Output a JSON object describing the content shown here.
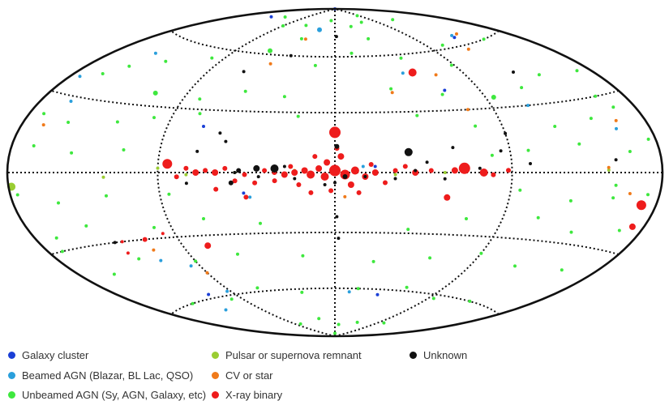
{
  "classes": {
    "galaxy_cluster": {
      "label": "Galaxy cluster",
      "color": "#1a3fd6"
    },
    "beamed_agn": {
      "label": "Beamed AGN (Blazar, BL Lac, QSO)",
      "color": "#2a9fdc"
    },
    "unbeamed_agn": {
      "label": "Unbeamed AGN (Sy, AGN, Galaxy, etc)",
      "color": "#3ee83e"
    },
    "pulsar_snr": {
      "label": "Pulsar or supernova remnant",
      "color": "#9acd32"
    },
    "cv_star": {
      "label": "CV or star",
      "color": "#f07a1a"
    },
    "xray_binary": {
      "label": "X-ray binary",
      "color": "#ee1c1c"
    },
    "unknown": {
      "label": "Unknown",
      "color": "#111111"
    }
  },
  "legend_order": [
    "galaxy_cluster",
    "beamed_agn",
    "unbeamed_agn",
    "pulsar_snr",
    "cv_star",
    "xray_binary",
    "unknown"
  ],
  "sources": [
    [
      "galaxy_cluster",
      0,
      90,
      2
    ],
    [
      "galaxy_cluster",
      148,
      78,
      2
    ],
    [
      "galaxy_cluster",
      -20,
      3,
      2
    ],
    [
      "galaxy_cluster",
      70,
      22,
      2
    ],
    [
      "galaxy_cluster",
      -68,
      40,
      2
    ],
    [
      "galaxy_cluster",
      -130,
      64,
      2
    ],
    [
      "galaxy_cluster",
      46,
      -10,
      2
    ],
    [
      "galaxy_cluster",
      112,
      -58,
      2
    ],
    [
      "galaxy_cluster",
      -40,
      -63,
      2
    ],
    [
      "beamed_agn",
      -132,
      65,
      2
    ],
    [
      "beamed_agn",
      25,
      76,
      3
    ],
    [
      "beamed_agn",
      -48,
      50,
      2
    ],
    [
      "beamed_agn",
      173,
      37,
      2
    ],
    [
      "beamed_agn",
      -112,
      30,
      2
    ],
    [
      "beamed_agn",
      159,
      28,
      2
    ],
    [
      "beamed_agn",
      -157,
      17,
      2
    ],
    [
      "beamed_agn",
      43,
      -12,
      2
    ],
    [
      "beamed_agn",
      112,
      -40,
      2
    ],
    [
      "beamed_agn",
      96,
      -44,
      2
    ],
    [
      "beamed_agn",
      126,
      -66,
      2
    ],
    [
      "beamed_agn",
      -13,
      -62,
      2
    ],
    [
      "beamed_agn",
      93,
      -58,
      2
    ],
    [
      "beamed_agn",
      -14,
      3,
      2
    ],
    [
      "beamed_agn",
      148,
      52,
      2
    ],
    [
      "unbeamed_agn",
      -125,
      78,
      2
    ],
    [
      "unbeamed_agn",
      -85,
      84,
      2
    ],
    [
      "unbeamed_agn",
      -60,
      80,
      2
    ],
    [
      "unbeamed_agn",
      -30,
      78,
      2
    ],
    [
      "unbeamed_agn",
      10,
      82,
      2
    ],
    [
      "unbeamed_agn",
      55,
      78,
      2
    ],
    [
      "unbeamed_agn",
      90,
      76,
      2
    ],
    [
      "unbeamed_agn",
      130,
      80,
      2
    ],
    [
      "unbeamed_agn",
      -150,
      60,
      2
    ],
    [
      "unbeamed_agn",
      -105,
      62,
      2
    ],
    [
      "unbeamed_agn",
      -88,
      52,
      2
    ],
    [
      "unbeamed_agn",
      -55,
      58,
      2
    ],
    [
      "unbeamed_agn",
      -15,
      62,
      2
    ],
    [
      "unbeamed_agn",
      15,
      55,
      2
    ],
    [
      "unbeamed_agn",
      60,
      62,
      3
    ],
    [
      "unbeamed_agn",
      100,
      55,
      2
    ],
    [
      "unbeamed_agn",
      130,
      50,
      2
    ],
    [
      "unbeamed_agn",
      150,
      45,
      2
    ],
    [
      "unbeamed_agn",
      -170,
      40,
      2
    ],
    [
      "unbeamed_agn",
      -140,
      42,
      2
    ],
    [
      "unbeamed_agn",
      -118,
      38,
      2
    ],
    [
      "unbeamed_agn",
      -95,
      35,
      3
    ],
    [
      "unbeamed_agn",
      -65,
      38,
      2
    ],
    [
      "unbeamed_agn",
      -35,
      42,
      2
    ],
    [
      "unbeamed_agn",
      30,
      38,
      2
    ],
    [
      "unbeamed_agn",
      55,
      40,
      2
    ],
    [
      "unbeamed_agn",
      80,
      35,
      2
    ],
    [
      "unbeamed_agn",
      110,
      36,
      3
    ],
    [
      "unbeamed_agn",
      160,
      40,
      2
    ],
    [
      "unbeamed_agn",
      -165,
      25,
      2
    ],
    [
      "unbeamed_agn",
      -145,
      22,
      2
    ],
    [
      "unbeamed_agn",
      -120,
      20,
      2
    ],
    [
      "unbeamed_agn",
      -75,
      22,
      2
    ],
    [
      "unbeamed_agn",
      -45,
      28,
      2
    ],
    [
      "unbeamed_agn",
      20,
      28,
      2
    ],
    [
      "unbeamed_agn",
      75,
      28,
      2
    ],
    [
      "unbeamed_agn",
      100,
      25,
      2
    ],
    [
      "unbeamed_agn",
      120,
      22,
      2
    ],
    [
      "unbeamed_agn",
      150,
      20,
      2
    ],
    [
      "unbeamed_agn",
      170,
      22,
      2
    ],
    [
      "unbeamed_agn",
      -175,
      12,
      2
    ],
    [
      "unbeamed_agn",
      -160,
      8,
      2
    ],
    [
      "unbeamed_agn",
      -130,
      12,
      2
    ],
    [
      "unbeamed_agn",
      -100,
      10,
      2
    ],
    [
      "unbeamed_agn",
      -80,
      8,
      2
    ],
    [
      "unbeamed_agn",
      110,
      10,
      2
    ],
    [
      "unbeamed_agn",
      140,
      8,
      2
    ],
    [
      "unbeamed_agn",
      165,
      10,
      2
    ],
    [
      "unbeamed_agn",
      -172,
      -8,
      2
    ],
    [
      "unbeamed_agn",
      -150,
      -10,
      2
    ],
    [
      "unbeamed_agn",
      -125,
      -12,
      2
    ],
    [
      "unbeamed_agn",
      -95,
      -8,
      2
    ],
    [
      "unbeamed_agn",
      85,
      -10,
      2
    ],
    [
      "unbeamed_agn",
      120,
      -10,
      2
    ],
    [
      "unbeamed_agn",
      150,
      -12,
      2
    ],
    [
      "unbeamed_agn",
      175,
      -8,
      2
    ],
    [
      "unbeamed_agn",
      -165,
      -22,
      2
    ],
    [
      "unbeamed_agn",
      -135,
      -25,
      2
    ],
    [
      "unbeamed_agn",
      -110,
      -20,
      2
    ],
    [
      "unbeamed_agn",
      -70,
      -22,
      2
    ],
    [
      "unbeamed_agn",
      -40,
      -28,
      2
    ],
    [
      "unbeamed_agn",
      40,
      -25,
      2
    ],
    [
      "unbeamed_agn",
      70,
      -22,
      2
    ],
    [
      "unbeamed_agn",
      100,
      -25,
      2
    ],
    [
      "unbeamed_agn",
      140,
      -22,
      2
    ],
    [
      "unbeamed_agn",
      165,
      -25,
      2
    ],
    [
      "unbeamed_agn",
      -155,
      -40,
      2
    ],
    [
      "unbeamed_agn",
      -120,
      -42,
      2
    ],
    [
      "unbeamed_agn",
      -90,
      -38,
      2
    ],
    [
      "unbeamed_agn",
      -60,
      -42,
      2
    ],
    [
      "unbeamed_agn",
      -25,
      -45,
      2
    ],
    [
      "unbeamed_agn",
      20,
      -42,
      2
    ],
    [
      "unbeamed_agn",
      60,
      -40,
      2
    ],
    [
      "unbeamed_agn",
      90,
      -42,
      2
    ],
    [
      "unbeamed_agn",
      125,
      -38,
      2
    ],
    [
      "unbeamed_agn",
      155,
      -42,
      2
    ],
    [
      "unbeamed_agn",
      -130,
      -60,
      2
    ],
    [
      "unbeamed_agn",
      -95,
      -62,
      2
    ],
    [
      "unbeamed_agn",
      -60,
      -58,
      2
    ],
    [
      "unbeamed_agn",
      -20,
      -60,
      2
    ],
    [
      "unbeamed_agn",
      30,
      -62,
      2
    ],
    [
      "unbeamed_agn",
      65,
      -58,
      2
    ],
    [
      "unbeamed_agn",
      100,
      -62,
      2
    ],
    [
      "unbeamed_agn",
      140,
      -60,
      2
    ],
    [
      "unbeamed_agn",
      -100,
      -78,
      2
    ],
    [
      "unbeamed_agn",
      -50,
      -80,
      2
    ],
    [
      "unbeamed_agn",
      -10,
      -82,
      2
    ],
    [
      "unbeamed_agn",
      30,
      -78,
      2
    ],
    [
      "unbeamed_agn",
      80,
      -80,
      2
    ],
    [
      "unbeamed_agn",
      0,
      -88,
      2
    ],
    [
      "unbeamed_agn",
      -160,
      30,
      2
    ],
    [
      "unbeamed_agn",
      -150,
      -5,
      2
    ],
    [
      "unbeamed_agn",
      170,
      -30,
      2
    ],
    [
      "unbeamed_agn",
      -40,
      70,
      2
    ],
    [
      "unbeamed_agn",
      40,
      70,
      2
    ],
    [
      "pulsar_snr",
      178,
      -5,
      5
    ],
    [
      "pulsar_snr",
      120,
      -2,
      2
    ],
    [
      "pulsar_snr",
      50,
      0,
      2
    ],
    [
      "pulsar_snr",
      -55,
      0,
      2
    ],
    [
      "pulsar_snr",
      20,
      1,
      2
    ],
    [
      "pulsar_snr",
      -145,
      1,
      2
    ],
    [
      "pulsar_snr",
      90,
      2,
      2
    ],
    [
      "pulsar_snr",
      5,
      -2,
      2
    ],
    [
      "pulsar_snr",
      -30,
      -1,
      2
    ],
    [
      "pulsar_snr",
      75,
      -1,
      2
    ],
    [
      "cv_star",
      -140,
      65,
      2
    ],
    [
      "cv_star",
      -160,
      20,
      2
    ],
    [
      "cv_star",
      165,
      18,
      2
    ],
    [
      "cv_star",
      -145,
      2,
      2
    ],
    [
      "cv_star",
      -160,
      -8,
      2
    ],
    [
      "cv_star",
      -35,
      40,
      2
    ],
    [
      "cv_star",
      -120,
      58,
      2
    ],
    [
      "cv_star",
      -70,
      48,
      2
    ],
    [
      "cv_star",
      35,
      70,
      2
    ],
    [
      "cv_star",
      -5,
      -12,
      2
    ],
    [
      "cv_star",
      110,
      -35,
      2
    ],
    [
      "cv_star",
      90,
      -48,
      2
    ],
    [
      "cv_star",
      50,
      55,
      2
    ],
    [
      "cv_star",
      -75,
      30,
      2
    ],
    [
      "xray_binary",
      0,
      20,
      7
    ],
    [
      "xray_binary",
      -65,
      2,
      7
    ],
    [
      "xray_binary",
      -75,
      0,
      5
    ],
    [
      "xray_binary",
      -60,
      1,
      4
    ],
    [
      "xray_binary",
      85,
      4,
      6
    ],
    [
      "xray_binary",
      -170,
      -12,
      6
    ],
    [
      "xray_binary",
      -172,
      -20,
      4
    ],
    [
      "xray_binary",
      -57,
      -12,
      4
    ],
    [
      "xray_binary",
      -40,
      0,
      4
    ],
    [
      "xray_binary",
      -30,
      1,
      3
    ],
    [
      "xray_binary",
      -20,
      0,
      4
    ],
    [
      "xray_binary",
      -15,
      -2,
      4
    ],
    [
      "xray_binary",
      -10,
      1,
      5
    ],
    [
      "xray_binary",
      -5,
      -1,
      6
    ],
    [
      "xray_binary",
      0,
      1,
      7
    ],
    [
      "xray_binary",
      5,
      -2,
      5
    ],
    [
      "xray_binary",
      8,
      2,
      4
    ],
    [
      "xray_binary",
      12,
      -1,
      5
    ],
    [
      "xray_binary",
      15,
      1,
      4
    ],
    [
      "xray_binary",
      20,
      0,
      4
    ],
    [
      "xray_binary",
      25,
      -1,
      4
    ],
    [
      "xray_binary",
      30,
      0,
      3
    ],
    [
      "xray_binary",
      35,
      1,
      3
    ],
    [
      "xray_binary",
      45,
      -1,
      3
    ],
    [
      "xray_binary",
      60,
      0,
      4
    ],
    [
      "xray_binary",
      65,
      1,
      3
    ],
    [
      "xray_binary",
      70,
      0,
      4
    ],
    [
      "xray_binary",
      -8,
      -6,
      4
    ],
    [
      "xray_binary",
      4,
      5,
      4
    ],
    [
      "xray_binary",
      18,
      -6,
      3
    ],
    [
      "xray_binary",
      -3,
      8,
      4
    ],
    [
      "xray_binary",
      -55,
      50,
      5
    ],
    [
      "xray_binary",
      75,
      -35,
      4
    ],
    [
      "xray_binary",
      45,
      -12,
      3
    ],
    [
      "xray_binary",
      60,
      -8,
      3
    ],
    [
      "xray_binary",
      40,
      -5,
      3
    ],
    [
      "xray_binary",
      -25,
      -5,
      3
    ],
    [
      "xray_binary",
      30,
      -4,
      3
    ],
    [
      "xray_binary",
      -35,
      3,
      3
    ],
    [
      "xray_binary",
      10,
      8,
      3
    ],
    [
      "xray_binary",
      -1,
      12,
      3
    ],
    [
      "xray_binary",
      50,
      -4,
      3
    ],
    [
      "xray_binary",
      12,
      -10,
      3
    ],
    [
      "xray_binary",
      -12,
      -10,
      3
    ],
    [
      "xray_binary",
      2,
      -9,
      3
    ],
    [
      "xray_binary",
      110,
      -30,
      3
    ],
    [
      "xray_binary",
      97,
      -28,
      2
    ],
    [
      "xray_binary",
      125,
      -30,
      2
    ],
    [
      "xray_binary",
      128,
      -35,
      2
    ],
    [
      "xray_binary",
      80,
      -2,
      3
    ],
    [
      "xray_binary",
      75,
      2,
      3
    ],
    [
      "xray_binary",
      55,
      2,
      3
    ],
    [
      "xray_binary",
      -80,
      -1,
      3
    ],
    [
      "xray_binary",
      -88,
      1,
      3
    ],
    [
      "xray_binary",
      22,
      3,
      3
    ],
    [
      "xray_binary",
      -18,
      4,
      3
    ],
    [
      "xray_binary",
      -48,
      1,
      3
    ],
    [
      "unknown",
      -150,
      5,
      2
    ],
    [
      "unknown",
      -125,
      45,
      2
    ],
    [
      "unknown",
      -90,
      18,
      2
    ],
    [
      "unknown",
      -73,
      2,
      2
    ],
    [
      "unknown",
      -60,
      12,
      2
    ],
    [
      "unknown",
      -37,
      10,
      5
    ],
    [
      "unknown",
      -40,
      1,
      2
    ],
    [
      "unknown",
      -5,
      -2,
      3
    ],
    [
      "unknown",
      -1,
      13,
      3
    ],
    [
      "unknown",
      30,
      2,
      5
    ],
    [
      "unknown",
      39,
      2,
      4
    ],
    [
      "unknown",
      48,
      1,
      3
    ],
    [
      "unknown",
      56,
      15,
      2
    ],
    [
      "unknown",
      60,
      19,
      2
    ],
    [
      "unknown",
      70,
      10,
      2
    ],
    [
      "unknown",
      75,
      -5,
      2
    ],
    [
      "unknown",
      52,
      -5,
      3
    ],
    [
      "unknown",
      5,
      -6,
      2
    ],
    [
      "unknown",
      -1,
      -22,
      2
    ],
    [
      "unknown",
      -2,
      -33,
      2
    ],
    [
      "unknown",
      -30,
      -3,
      2
    ],
    [
      "unknown",
      -85,
      10,
      2
    ],
    [
      "unknown",
      -46,
      5,
      2
    ],
    [
      "unknown",
      -55,
      -3,
      2
    ],
    [
      "unknown",
      -100,
      4,
      2
    ],
    [
      "unknown",
      65,
      50,
      2
    ],
    [
      "unknown",
      38,
      60,
      2
    ],
    [
      "unknown",
      -2,
      72,
      2
    ],
    [
      "unknown",
      50,
      0,
      2
    ],
    [
      "unknown",
      130,
      -30,
      2
    ],
    [
      "unknown",
      0,
      -5,
      2
    ],
    [
      "unknown",
      20,
      -3,
      2
    ],
    [
      "unknown",
      25,
      3,
      2
    ],
    [
      "unknown",
      -15,
      -2,
      2
    ],
    [
      "unknown",
      38,
      -2,
      2
    ]
  ]
}
